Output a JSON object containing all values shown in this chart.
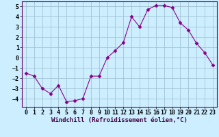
{
  "x": [
    0,
    1,
    2,
    3,
    4,
    5,
    6,
    7,
    8,
    9,
    10,
    11,
    12,
    13,
    14,
    15,
    16,
    17,
    18,
    19,
    20,
    21,
    22,
    23
  ],
  "y": [
    -1.5,
    -1.8,
    -3.0,
    -3.5,
    -2.7,
    -4.3,
    -4.2,
    -4.0,
    -1.8,
    -1.8,
    0.0,
    0.7,
    1.5,
    4.0,
    3.0,
    4.7,
    5.1,
    5.1,
    4.9,
    3.4,
    2.7,
    1.4,
    0.5,
    -0.7
  ],
  "line_color": "#880088",
  "marker": "D",
  "marker_size": 2.5,
  "bg_color": "#cceeff",
  "grid_color": "#99bbcc",
  "xlabel": "Windchill (Refroidissement éolien,°C)",
  "xlabel_fontsize": 6.5,
  "tick_fontsize": 6,
  "ylim": [
    -4.8,
    5.5
  ],
  "yticks": [
    -4,
    -3,
    -2,
    -1,
    0,
    1,
    2,
    3,
    4,
    5
  ],
  "xticks": [
    0,
    1,
    2,
    3,
    4,
    5,
    6,
    7,
    8,
    9,
    10,
    11,
    12,
    13,
    14,
    15,
    16,
    17,
    18,
    19,
    20,
    21,
    22,
    23
  ]
}
